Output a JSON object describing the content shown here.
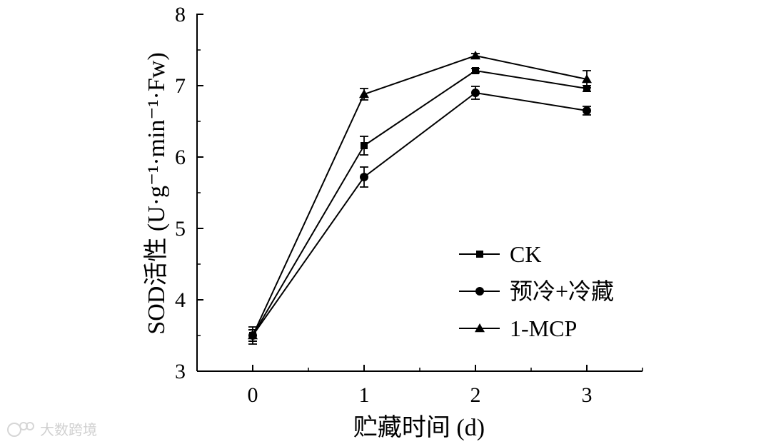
{
  "chart_data": {
    "type": "line",
    "xlabel": "贮藏时间 (d)",
    "ylabel": "SOD活性 (U·g⁻¹·min⁻¹·Fw)",
    "x": [
      0,
      1,
      2,
      3
    ],
    "xticks": [
      "0",
      "1",
      "2",
      "3"
    ],
    "xlim": [
      -0.5,
      3.5
    ],
    "yticks": [
      "3",
      "4",
      "5",
      "6",
      "7",
      "8"
    ],
    "ylim": [
      3,
      8
    ],
    "grid": false,
    "legend_position": "right",
    "series": [
      {
        "name": "CK",
        "marker": "square",
        "values": [
          3.5,
          6.16,
          7.21,
          6.96
        ],
        "errors": [
          0.08,
          0.13,
          0.03,
          0.04
        ]
      },
      {
        "name": "预冷+冷藏",
        "marker": "circle",
        "values": [
          3.5,
          5.72,
          6.9,
          6.65
        ],
        "errors": [
          0.08,
          0.14,
          0.09,
          0.06
        ]
      },
      {
        "name": "1-MCP",
        "marker": "triangle",
        "values": [
          3.5,
          6.88,
          7.42,
          7.09
        ],
        "errors": [
          0.12,
          0.08,
          0.03,
          0.12
        ]
      }
    ]
  },
  "watermark": {
    "text": "大数跨境"
  }
}
